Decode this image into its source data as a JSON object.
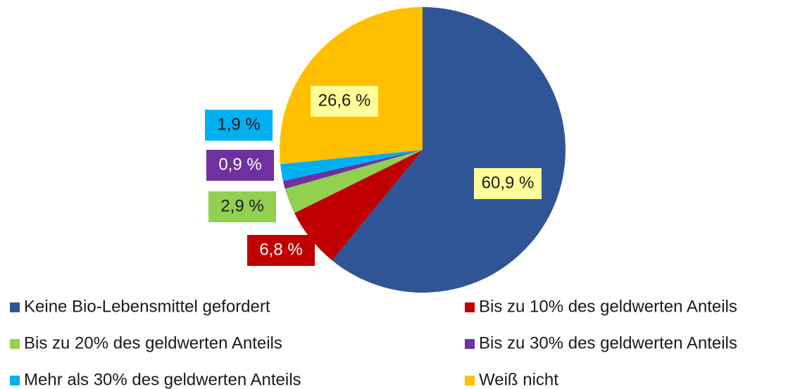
{
  "chart_data": {
    "type": "pie",
    "categories": [
      "Keine Bio-Lebensmittel gefordert",
      "Bis zu 10% des geldwerten Anteils",
      "Bis zu 20% des geldwerten Anteils",
      "Bis zu 30% des geldwerten Anteils",
      "Mehr als 30% des geldwerten Anteils",
      "Weiß nicht"
    ],
    "values": [
      60.9,
      6.8,
      2.9,
      0.9,
      1.9,
      26.6
    ],
    "value_labels": [
      "60,9 %",
      "6,8 %",
      "2,9 %",
      "0,9 %",
      "1,9 %",
      "26,6 %"
    ],
    "colors": [
      "#2f5597",
      "#c00000",
      "#92d050",
      "#7030a0",
      "#00b0f0",
      "#ffc000"
    ],
    "legend": "bottom"
  }
}
